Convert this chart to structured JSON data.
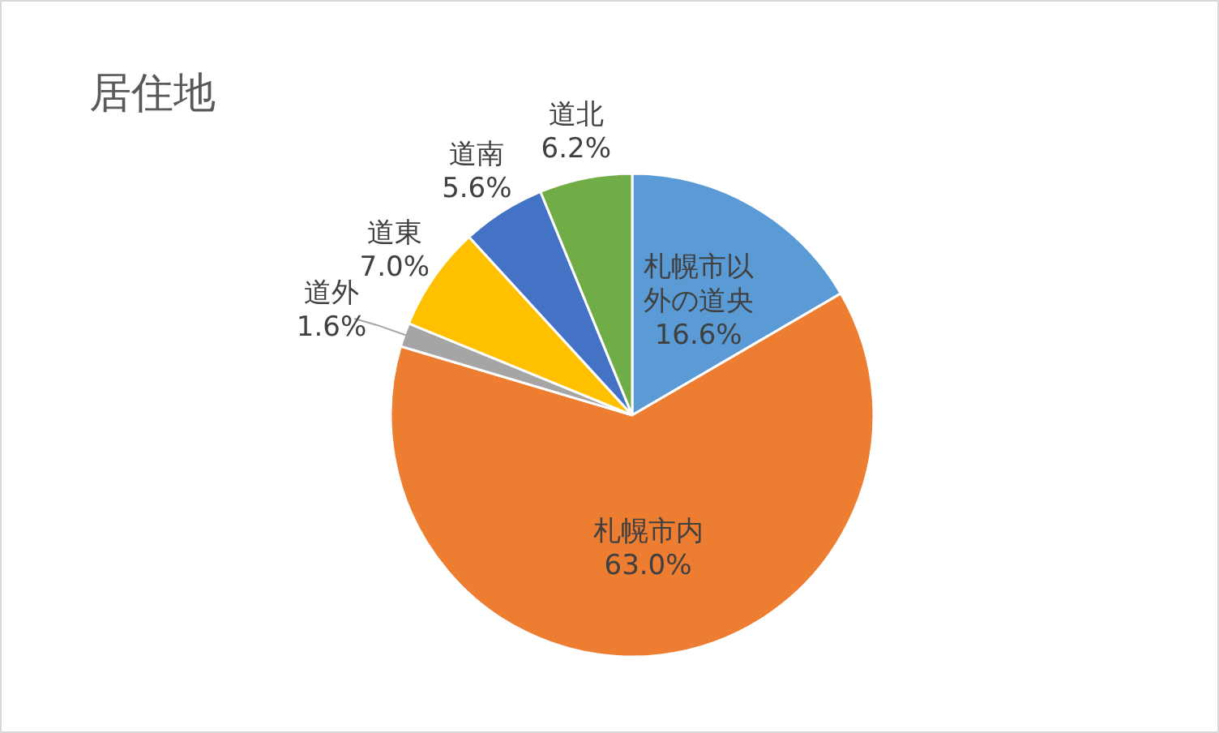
{
  "chart_data": {
    "type": "pie",
    "title": "居住地",
    "categories": [
      "札幌市以外の道央",
      "札幌市内",
      "道外",
      "道東",
      "道南",
      "道北"
    ],
    "values": [
      16.6,
      63.0,
      1.6,
      7.0,
      5.6,
      6.2
    ],
    "value_labels": [
      "16.6%",
      "63.0%",
      "1.6%",
      "7.0%",
      "5.6%",
      "6.2%"
    ],
    "colors": [
      "#5b9bd5",
      "#ed7d31",
      "#a5a5a5",
      "#ffc000",
      "#4472c4",
      "#70ad47"
    ]
  }
}
